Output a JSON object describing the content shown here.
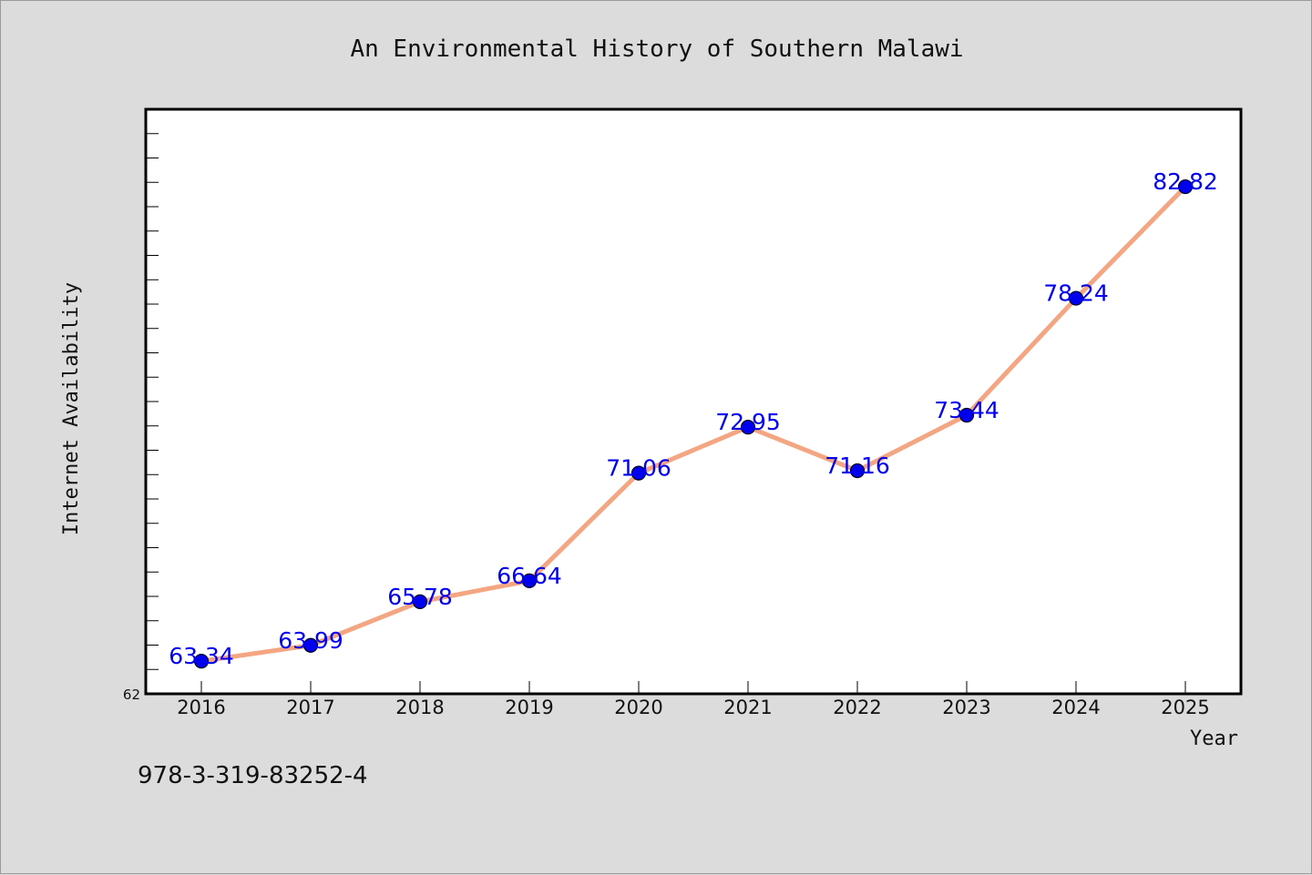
{
  "chart_data": {
    "type": "line",
    "title": "An Environmental History of Southern Malawi",
    "xlabel": "Year",
    "ylabel": "Internet Availability",
    "categories": [
      "2016",
      "2017",
      "2018",
      "2019",
      "2020",
      "2021",
      "2022",
      "2023",
      "2024",
      "2025"
    ],
    "values": [
      63.34,
      63.99,
      65.78,
      66.64,
      71.06,
      72.95,
      71.16,
      73.44,
      78.24,
      82.82
    ],
    "data_labels": [
      "63.34",
      "63.99",
      "65.78",
      "66.64",
      "71.06",
      "72.95",
      "71.16",
      "73.44",
      "78.24",
      "82.82"
    ],
    "y_tick_labels": [
      "62"
    ],
    "ylim": [
      62,
      86
    ],
    "y_minor_step": 1,
    "grid": false,
    "legend": "none",
    "colors": {
      "line": "#f4a582",
      "marker": "#0000ee",
      "data_label": "#0000ee",
      "plot_background": "#ffffff",
      "figure_background": "#dcdcdc"
    }
  },
  "footer": {
    "isbn": "978-3-319-83252-4"
  }
}
